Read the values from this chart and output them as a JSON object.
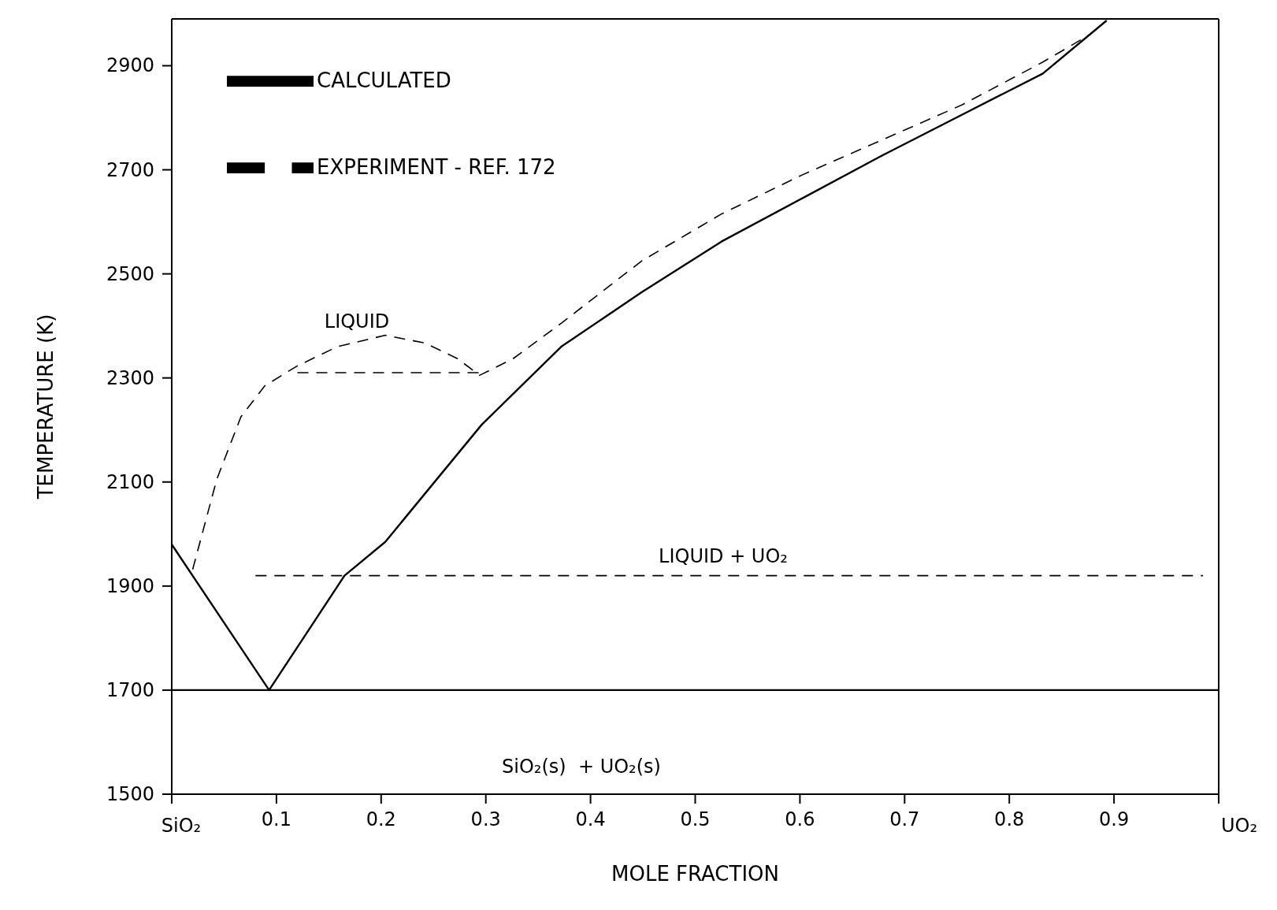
{
  "chart_data": {
    "type": "line",
    "xlabel": "MOLE FRACTION",
    "ylabel": "TEMPERATURE (K)",
    "xlim": [
      0,
      1
    ],
    "ylim": [
      1500,
      2990
    ],
    "xticks": [
      {
        "value": 0,
        "label": null
      },
      0.1,
      0.2,
      0.3,
      0.4,
      0.5,
      0.6,
      0.7,
      0.8,
      0.9,
      {
        "value": 1,
        "label": null
      }
    ],
    "yticks": [
      1500,
      1700,
      1900,
      2100,
      2300,
      2500,
      2700,
      2900
    ],
    "grid": false,
    "legend": "top left",
    "marker": "none",
    "series": [
      {
        "name": "CALCULATED",
        "color": "#000000",
        "line_style": "solid",
        "x": [
          0,
          0.093,
          0.165,
          0.204,
          0.296,
          0.372,
          0.449,
          0.525,
          0.602,
          0.678,
          0.755,
          0.832,
          0.893
        ],
        "values": [
          1980,
          1700,
          1920,
          1985,
          2210,
          2360,
          2465,
          2562,
          2645,
          2727,
          2806,
          2885,
          2987
        ]
      },
      {
        "color": "#000000",
        "line_style": "solid",
        "x": [
          0,
          1
        ],
        "values": [
          1700,
          1700
        ]
      },
      {
        "name": "EXPERIMENT - REF. 172",
        "color": "#000000",
        "line_style": "dashed",
        "x": [
          0.02,
          0.043,
          0.066,
          0.089,
          0.119,
          0.158,
          0.204,
          0.242,
          0.273,
          0.294,
          0.326,
          0.372,
          0.449,
          0.525,
          0.602,
          0.678,
          0.755,
          0.832,
          0.877
        ],
        "values": [
          1932,
          2105,
          2225,
          2285,
          2322,
          2360,
          2382,
          2367,
          2337,
          2305,
          2337,
          2405,
          2525,
          2615,
          2690,
          2757,
          2825,
          2907,
          2960
        ]
      },
      {
        "color": "#000000",
        "line_style": "dashed",
        "x": [
          0.12,
          0.294
        ],
        "values": [
          2310,
          2310
        ]
      },
      {
        "color": "#000000",
        "line_style": "dashed",
        "x": [
          0.08,
          0.985
        ],
        "values": [
          1920,
          1920
        ]
      }
    ],
    "annotations": [
      "LIQUID",
      "LIQUID + UO₂",
      "SiO₂(s)  + UO₂(s)",
      "SiO₂",
      "UO₂"
    ]
  }
}
